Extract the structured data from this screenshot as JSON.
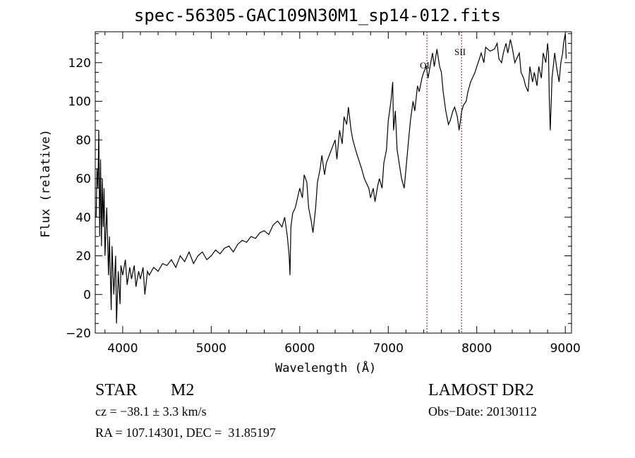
{
  "chart_data": {
    "type": "line",
    "title": "spec-56305-GAC109N30M1_sp14-012.fits",
    "xlabel": "Wavelength (Å)",
    "ylabel": "Flux (relative)",
    "xlim": [
      3690,
      9070
    ],
    "ylim": [
      -20,
      136
    ],
    "xticks": [
      4000,
      5000,
      6000,
      7000,
      8000,
      9000
    ],
    "yticks": [
      -20,
      0,
      20,
      40,
      60,
      80,
      100,
      120
    ],
    "grid": false,
    "line_color": "#000000",
    "marker_color": "#8b1a1a",
    "line_markers": [
      {
        "label": "OI",
        "x": 7437
      },
      {
        "label": "SII",
        "x": 7828
      }
    ],
    "series": [
      {
        "name": "spectrum",
        "x": [
          3700,
          3710,
          3720,
          3730,
          3740,
          3750,
          3760,
          3770,
          3780,
          3790,
          3800,
          3820,
          3840,
          3850,
          3870,
          3880,
          3900,
          3920,
          3930,
          3950,
          3970,
          3980,
          4000,
          4030,
          4050,
          4080,
          4100,
          4130,
          4150,
          4180,
          4200,
          4230,
          4250,
          4280,
          4300,
          4350,
          4400,
          4450,
          4500,
          4550,
          4600,
          4650,
          4700,
          4750,
          4800,
          4850,
          4900,
          4950,
          5000,
          5050,
          5100,
          5150,
          5200,
          5250,
          5300,
          5350,
          5400,
          5450,
          5500,
          5550,
          5600,
          5650,
          5700,
          5750,
          5800,
          5830,
          5860,
          5880,
          5890,
          5900,
          5920,
          5950,
          6000,
          6030,
          6050,
          6080,
          6100,
          6130,
          6150,
          6180,
          6200,
          6230,
          6250,
          6280,
          6300,
          6350,
          6400,
          6420,
          6450,
          6480,
          6500,
          6530,
          6550,
          6580,
          6600,
          6630,
          6650,
          6700,
          6730,
          6750,
          6780,
          6800,
          6830,
          6850,
          6880,
          6900,
          6930,
          6950,
          6980,
          7000,
          7030,
          7050,
          7060,
          7080,
          7100,
          7150,
          7180,
          7200,
          7230,
          7250,
          7280,
          7300,
          7330,
          7350,
          7380,
          7400,
          7430,
          7450,
          7480,
          7500,
          7520,
          7550,
          7580,
          7600,
          7620,
          7650,
          7680,
          7700,
          7730,
          7750,
          7780,
          7800,
          7830,
          7850,
          7880,
          7900,
          7930,
          7950,
          7980,
          8000,
          8030,
          8050,
          8080,
          8100,
          8150,
          8200,
          8230,
          8250,
          8280,
          8300,
          8330,
          8350,
          8380,
          8400,
          8430,
          8450,
          8480,
          8500,
          8530,
          8550,
          8580,
          8600,
          8630,
          8650,
          8680,
          8700,
          8730,
          8750,
          8780,
          8800,
          8810,
          8820,
          8830,
          8850,
          8880,
          8900,
          8930,
          8950,
          8970,
          8980,
          9000,
          9010
        ],
        "y": [
          40,
          65,
          55,
          85,
          30,
          70,
          25,
          60,
          35,
          55,
          20,
          45,
          10,
          30,
          -8,
          25,
          0,
          20,
          -15,
          12,
          -5,
          15,
          10,
          18,
          5,
          14,
          8,
          15,
          4,
          12,
          8,
          14,
          0,
          12,
          10,
          14,
          12,
          16,
          15,
          18,
          14,
          20,
          17,
          22,
          16,
          20,
          22,
          18,
          20,
          23,
          21,
          24,
          25,
          22,
          26,
          28,
          27,
          30,
          29,
          32,
          33,
          31,
          36,
          38,
          35,
          40,
          30,
          20,
          10,
          35,
          42,
          45,
          55,
          50,
          62,
          58,
          45,
          38,
          32,
          45,
          58,
          65,
          72,
          62,
          68,
          74,
          80,
          70,
          85,
          78,
          92,
          88,
          97,
          85,
          80,
          75,
          72,
          65,
          60,
          58,
          55,
          50,
          55,
          48,
          56,
          60,
          55,
          68,
          75,
          90,
          100,
          110,
          85,
          95,
          75,
          60,
          55,
          65,
          80,
          90,
          100,
          95,
          108,
          105,
          112,
          115,
          118,
          112,
          120,
          125,
          118,
          127,
          118,
          115,
          105,
          95,
          88,
          90,
          95,
          97,
          92,
          85,
          95,
          98,
          100,
          105,
          110,
          112,
          115,
          118,
          122,
          125,
          120,
          128,
          126,
          127,
          130,
          122,
          120,
          125,
          130,
          125,
          132,
          128,
          120,
          122,
          125,
          115,
          112,
          108,
          105,
          118,
          110,
          115,
          108,
          118,
          112,
          125,
          120,
          130,
          125,
          100,
          85,
          112,
          125,
          118,
          110,
          120,
          125,
          130,
          135,
          122
        ]
      }
    ]
  },
  "annotations": {
    "object_class": "STAR",
    "subclass": "M2",
    "survey": "LAMOST DR2",
    "velocity": "cz = −38.1 ± 3.3 km/s",
    "obs_date": "Obs−Date: 20130112",
    "coords": "RA = 107.14301, DEC =  31.85197"
  }
}
